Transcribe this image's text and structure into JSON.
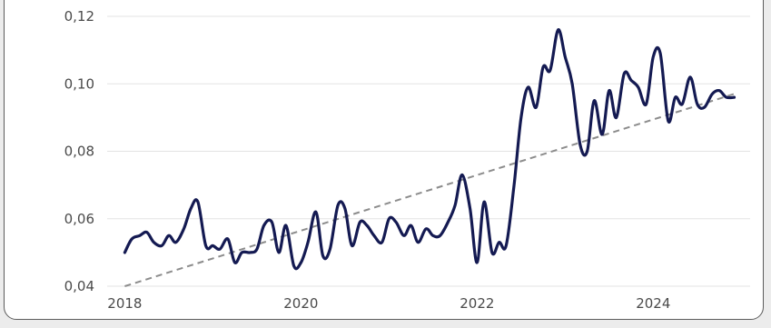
{
  "chart_data": {
    "type": "line",
    "title": "",
    "xlabel": "",
    "ylabel": "",
    "xlim": [
      2017.8,
      2025.1
    ],
    "ylim": [
      0.04,
      0.12
    ],
    "x_ticks": [
      {
        "value": 2018,
        "label": "2018"
      },
      {
        "value": 2020,
        "label": "2020"
      },
      {
        "value": 2022,
        "label": "2022"
      },
      {
        "value": 2024,
        "label": "2024"
      }
    ],
    "y_ticks": [
      {
        "value": 0.04,
        "label": "0,04"
      },
      {
        "value": 0.06,
        "label": "0,06"
      },
      {
        "value": 0.08,
        "label": "0,08"
      },
      {
        "value": 0.1,
        "label": "0,10"
      },
      {
        "value": 0.12,
        "label": "0,12"
      }
    ],
    "grid": {
      "horizontal": true,
      "vertical": false
    },
    "colors": {
      "series": "#141a52",
      "trend": "#8c8c8c",
      "grid": "#e3e3e3"
    },
    "series": [
      {
        "style": "solid",
        "x": [
          2018.0,
          2018.08,
          2018.17,
          2018.25,
          2018.33,
          2018.42,
          2018.5,
          2018.58,
          2018.67,
          2018.75,
          2018.83,
          2018.92,
          2019.0,
          2019.08,
          2019.17,
          2019.25,
          2019.33,
          2019.42,
          2019.5,
          2019.58,
          2019.67,
          2019.75,
          2019.83,
          2019.92,
          2020.0,
          2020.08,
          2020.17,
          2020.25,
          2020.33,
          2020.42,
          2020.5,
          2020.58,
          2020.67,
          2020.75,
          2020.83,
          2020.92,
          2021.0,
          2021.08,
          2021.17,
          2021.25,
          2021.33,
          2021.42,
          2021.5,
          2021.58,
          2021.67,
          2021.75,
          2021.83,
          2021.92,
          2022.0,
          2022.08,
          2022.17,
          2022.25,
          2022.33,
          2022.42,
          2022.5,
          2022.58,
          2022.67,
          2022.75,
          2022.83,
          2022.92,
          2023.0,
          2023.08,
          2023.17,
          2023.25,
          2023.33,
          2023.42,
          2023.5,
          2023.58,
          2023.67,
          2023.75,
          2023.83,
          2023.92,
          2024.0,
          2024.08,
          2024.17,
          2024.25,
          2024.33,
          2024.42,
          2024.5,
          2024.58,
          2024.67,
          2024.75,
          2024.83,
          2024.92
        ],
        "values": [
          0.05,
          0.054,
          0.055,
          0.056,
          0.053,
          0.052,
          0.055,
          0.053,
          0.057,
          0.063,
          0.065,
          0.052,
          0.052,
          0.051,
          0.054,
          0.047,
          0.05,
          0.05,
          0.051,
          0.058,
          0.059,
          0.05,
          0.058,
          0.046,
          0.047,
          0.053,
          0.062,
          0.049,
          0.051,
          0.064,
          0.063,
          0.052,
          0.059,
          0.058,
          0.055,
          0.053,
          0.06,
          0.059,
          0.055,
          0.058,
          0.053,
          0.057,
          0.055,
          0.055,
          0.059,
          0.064,
          0.073,
          0.063,
          0.047,
          0.065,
          0.05,
          0.053,
          0.052,
          0.07,
          0.09,
          0.099,
          0.093,
          0.105,
          0.104,
          0.116,
          0.108,
          0.1,
          0.082,
          0.08,
          0.095,
          0.085,
          0.098,
          0.09,
          0.103,
          0.101,
          0.099,
          0.094,
          0.108,
          0.109,
          0.089,
          0.096,
          0.094,
          0.102,
          0.094,
          0.093,
          0.097,
          0.098,
          0.096,
          0.096
        ]
      },
      {
        "style": "dashed",
        "x": [
          2018.0,
          2024.92
        ],
        "values": [
          0.04,
          0.097
        ]
      }
    ]
  }
}
